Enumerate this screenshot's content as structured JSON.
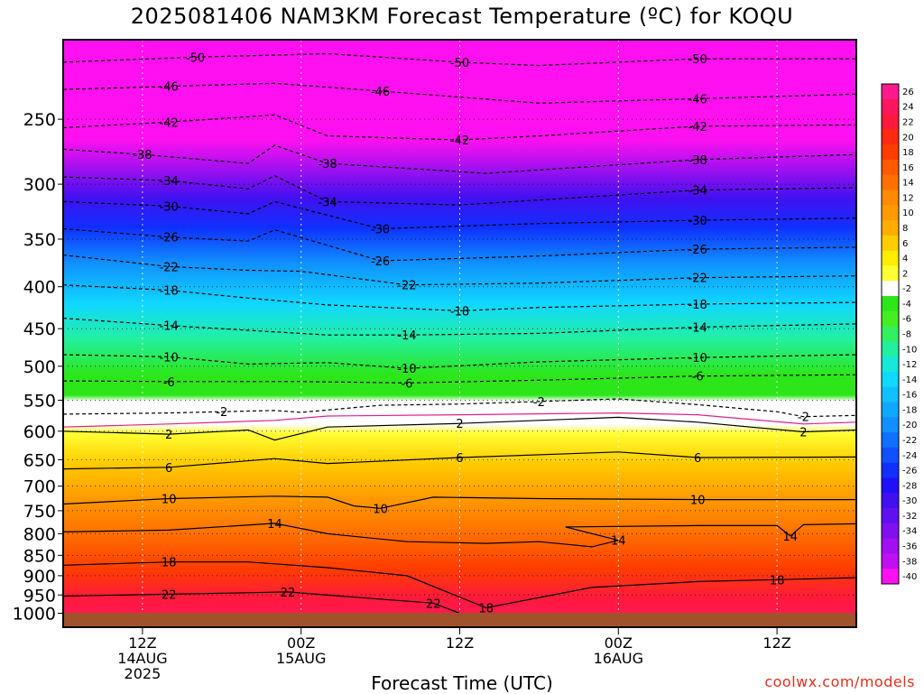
{
  "chart_data": {
    "type": "heatmap",
    "title": "2025081406 NAM3KM Forecast Temperature (ºC) for KOQU",
    "xlabel": "Forecast Time (UTC)",
    "ylabel": "",
    "credit": "coolwx.com/models",
    "y_axis": {
      "scale": "log-pressure",
      "range": [
        1040,
        200
      ],
      "ticks": [
        250,
        300,
        350,
        400,
        450,
        500,
        550,
        600,
        650,
        700,
        750,
        800,
        850,
        900,
        950,
        1000
      ]
    },
    "x_axis": {
      "range_hours": [
        0,
        60
      ],
      "ticks": [
        {
          "hour": 6,
          "labels": [
            "12Z",
            "14AUG",
            "2025"
          ]
        },
        {
          "hour": 18,
          "labels": [
            "00Z",
            "15AUG"
          ]
        },
        {
          "hour": 30,
          "labels": [
            "12Z"
          ]
        },
        {
          "hour": 42,
          "labels": [
            "00Z",
            "16AUG"
          ]
        },
        {
          "hour": 54,
          "labels": [
            "12Z"
          ]
        }
      ],
      "grid": "dotted"
    },
    "colorbar": {
      "labels": [
        "26",
        "24",
        "22",
        "20",
        "18",
        "16",
        "14",
        "12",
        "10",
        "8",
        "6",
        "4",
        "2",
        "-2",
        "-4",
        "-6",
        "-8",
        "-10",
        "-12",
        "-14",
        "-16",
        "-18",
        "-20",
        "-22",
        "-24",
        "-26",
        "-28",
        "-30",
        "-32",
        "-34",
        "-36",
        "-38",
        "-40"
      ],
      "colors": [
        "#ff1a8c",
        "#ff1560",
        "#ff1a3c",
        "#ff2a10",
        "#ff3d00",
        "#ff5a00",
        "#ff7000",
        "#ff8a00",
        "#ff9a00",
        "#ffad00",
        "#ffcc00",
        "#ffee00",
        "#ffff33",
        "#ffffff",
        "#2de61a",
        "#44ee22",
        "#33f060",
        "#22f0a0",
        "#18e8d8",
        "#10d8ff",
        "#10c0ff",
        "#10a8ff",
        "#1090ff",
        "#1070ff",
        "#1050ff",
        "#1030ff",
        "#2010f8",
        "#4010f0",
        "#6010f0",
        "#8010f0",
        "#a010f0",
        "#c010f0",
        "#ff10f0"
      ]
    },
    "contours": [
      {
        "label": "-50",
        "points": [
          [
            0,
            213
          ],
          [
            10,
            210
          ],
          [
            20,
            208
          ],
          [
            30,
            213
          ],
          [
            36,
            215
          ],
          [
            48,
            211
          ],
          [
            60,
            211
          ]
        ]
      },
      {
        "label": "-46",
        "points": [
          [
            0,
            230
          ],
          [
            8,
            228
          ],
          [
            16,
            226
          ],
          [
            24,
            231
          ],
          [
            36,
            239
          ],
          [
            48,
            236
          ],
          [
            60,
            233
          ]
        ]
      },
      {
        "label": "-42",
        "points": [
          [
            0,
            256
          ],
          [
            8,
            252
          ],
          [
            16,
            247
          ],
          [
            20,
            262
          ],
          [
            30,
            265
          ],
          [
            36,
            262
          ],
          [
            48,
            255
          ],
          [
            60,
            254
          ]
        ]
      },
      {
        "label": "-38",
        "points": [
          [
            0,
            272
          ],
          [
            6,
            276
          ],
          [
            14,
            283
          ],
          [
            16,
            269
          ],
          [
            20,
            283
          ],
          [
            32,
            291
          ],
          [
            48,
            280
          ],
          [
            60,
            276
          ]
        ]
      },
      {
        "label": "-34",
        "points": [
          [
            0,
            294
          ],
          [
            8,
            297
          ],
          [
            14,
            304
          ],
          [
            16,
            293
          ],
          [
            20,
            315
          ],
          [
            30,
            318
          ],
          [
            48,
            305
          ],
          [
            60,
            303
          ]
        ]
      },
      {
        "label": "-30",
        "points": [
          [
            0,
            315
          ],
          [
            8,
            319
          ],
          [
            14,
            326
          ],
          [
            16,
            315
          ],
          [
            24,
            340
          ],
          [
            36,
            335
          ],
          [
            48,
            332
          ],
          [
            60,
            330
          ]
        ]
      },
      {
        "label": "-26",
        "points": [
          [
            0,
            340
          ],
          [
            8,
            348
          ],
          [
            14,
            352
          ],
          [
            16,
            341
          ],
          [
            24,
            372
          ],
          [
            36,
            367
          ],
          [
            48,
            360
          ],
          [
            60,
            358
          ]
        ]
      },
      {
        "label": "-22",
        "points": [
          [
            0,
            366
          ],
          [
            8,
            378
          ],
          [
            14,
            382
          ],
          [
            18,
            383
          ],
          [
            26,
            398
          ],
          [
            36,
            396
          ],
          [
            48,
            390
          ],
          [
            60,
            388
          ]
        ]
      },
      {
        "label": "-18",
        "points": [
          [
            0,
            398
          ],
          [
            8,
            404
          ],
          [
            14,
            413
          ],
          [
            20,
            421
          ],
          [
            30,
            428
          ],
          [
            36,
            424
          ],
          [
            48,
            420
          ],
          [
            60,
            418
          ]
        ]
      },
      {
        "label": "-14",
        "points": [
          [
            0,
            437
          ],
          [
            8,
            446
          ],
          [
            14,
            452
          ],
          [
            20,
            458
          ],
          [
            26,
            458
          ],
          [
            36,
            456
          ],
          [
            48,
            448
          ],
          [
            60,
            444
          ]
        ]
      },
      {
        "label": "-10",
        "points": [
          [
            0,
            484
          ],
          [
            8,
            487
          ],
          [
            14,
            497
          ],
          [
            20,
            495
          ],
          [
            26,
            503
          ],
          [
            36,
            494
          ],
          [
            48,
            488
          ],
          [
            60,
            484
          ]
        ]
      },
      {
        "label": "-6",
        "points": [
          [
            0,
            521
          ],
          [
            8,
            522
          ],
          [
            14,
            522
          ],
          [
            18,
            522
          ],
          [
            26,
            524
          ],
          [
            36,
            520
          ],
          [
            48,
            514
          ],
          [
            60,
            512
          ]
        ]
      },
      {
        "label": "-2",
        "points": [
          [
            0,
            572
          ],
          [
            8,
            570
          ],
          [
            12,
            568
          ],
          [
            16,
            566
          ],
          [
            18,
            569
          ],
          [
            24,
            558
          ],
          [
            30,
            556
          ],
          [
            36,
            552
          ],
          [
            42,
            548
          ],
          [
            48,
            557
          ],
          [
            54,
            568
          ],
          [
            56,
            576
          ],
          [
            60,
            574
          ]
        ]
      },
      {
        "label": "2",
        "points": [
          [
            0,
            600
          ],
          [
            8,
            605
          ],
          [
            14,
            598
          ],
          [
            16,
            615
          ],
          [
            20,
            593
          ],
          [
            30,
            587
          ],
          [
            42,
            577
          ],
          [
            48,
            585
          ],
          [
            56,
            601
          ],
          [
            60,
            598
          ]
        ]
      },
      {
        "label": "6",
        "points": [
          [
            0,
            667
          ],
          [
            8,
            664
          ],
          [
            16,
            648
          ],
          [
            20,
            657
          ],
          [
            30,
            646
          ],
          [
            42,
            636
          ],
          [
            48,
            646
          ],
          [
            60,
            645
          ]
        ]
      },
      {
        "label": "10",
        "points": [
          [
            0,
            736
          ],
          [
            8,
            725
          ],
          [
            16,
            720
          ],
          [
            20,
            722
          ],
          [
            22,
            740
          ],
          [
            24,
            745
          ],
          [
            28,
            722
          ],
          [
            36,
            725
          ],
          [
            48,
            727
          ],
          [
            60,
            727
          ]
        ]
      },
      {
        "label": "14",
        "points": [
          [
            0,
            796
          ],
          [
            8,
            792
          ],
          [
            16,
            777
          ],
          [
            20,
            800
          ],
          [
            26,
            818
          ],
          [
            32,
            822
          ],
          [
            36,
            818
          ],
          [
            40,
            830
          ],
          [
            42,
            815
          ],
          [
            38,
            785
          ],
          [
            48,
            782
          ],
          [
            54,
            782
          ],
          [
            55,
            805
          ],
          [
            56,
            780
          ],
          [
            60,
            778
          ]
        ]
      },
      {
        "label": "18",
        "points": [
          [
            0,
            874
          ],
          [
            8,
            866
          ],
          [
            14,
            866
          ],
          [
            20,
            880
          ],
          [
            26,
            900
          ],
          [
            32,
            985
          ],
          [
            40,
            930
          ],
          [
            48,
            915
          ],
          [
            54,
            910
          ],
          [
            60,
            905
          ]
        ]
      },
      {
        "label": "22",
        "points": [
          [
            0,
            953
          ],
          [
            8,
            948
          ],
          [
            14,
            944
          ],
          [
            17,
            942
          ],
          [
            22,
            956
          ],
          [
            28,
            972
          ],
          [
            30,
            1000
          ]
        ]
      }
    ],
    "highlight_contour": {
      "label": "0",
      "color": "#e0208a",
      "points": [
        [
          0,
          593
        ],
        [
          8,
          588
        ],
        [
          16,
          582
        ],
        [
          20,
          575
        ],
        [
          30,
          573
        ],
        [
          42,
          570
        ],
        [
          48,
          573
        ],
        [
          56,
          588
        ],
        [
          60,
          585
        ]
      ]
    }
  }
}
